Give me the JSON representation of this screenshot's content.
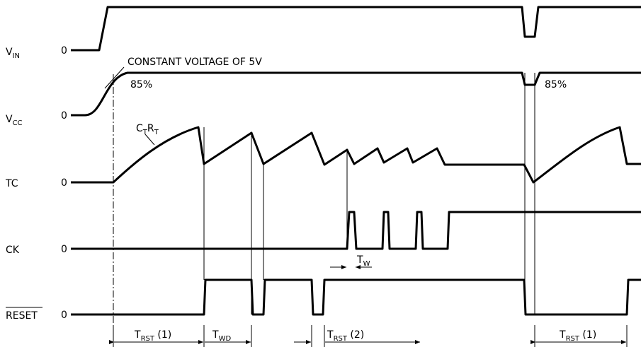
{
  "signals": [
    {
      "name": {
        "main": "V",
        "sub": "IN"
      },
      "zero": "0"
    },
    {
      "name": {
        "main": "V",
        "sub": "CC"
      },
      "zero": "0"
    },
    {
      "name": {
        "main": "TC"
      },
      "zero": "0"
    },
    {
      "name": {
        "main": "CK"
      },
      "zero": "0"
    },
    {
      "name": {
        "main": "RESET"
      },
      "zero": "0"
    }
  ],
  "annotations": {
    "constant": "CONSTANT VOLTAGE OF 5V",
    "pct_left": "85%",
    "pct_right": "85%",
    "ctrt": {
      "c": "C",
      "c_sub": "T",
      "r": "R",
      "r_sub": "T"
    }
  },
  "intervals": [
    {
      "main": "T",
      "sub": "RST",
      "suffix": " (1)"
    },
    {
      "main": "T",
      "sub": "WD"
    },
    {
      "main": "T",
      "sub": "RST",
      "suffix": " (2)"
    },
    {
      "main": "T",
      "sub": "W"
    },
    {
      "main": "T",
      "sub": "RST",
      "suffix": " (1)"
    }
  ]
}
